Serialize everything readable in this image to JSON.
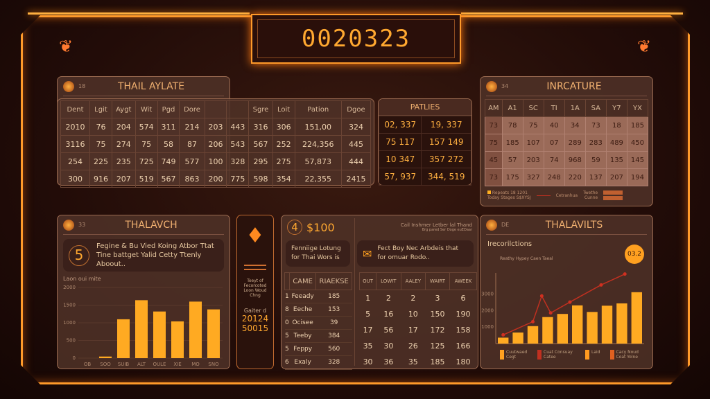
{
  "header": {
    "title": "0020323"
  },
  "colors": {
    "accent": "#ff9a2a",
    "bar": "#ffaa22",
    "line": "#c03020",
    "panel": "#503228"
  },
  "panel_rates": {
    "title": "THAIL AYLATE",
    "badge": "18",
    "columns": [
      "Dent",
      "Lgit",
      "Aygt",
      "Wit",
      "Pgd",
      "Dore",
      "",
      "",
      "Sgre",
      "Loit",
      "Pation",
      "Dgoe"
    ],
    "rows": [
      [
        "2010",
        "76",
        "204",
        "574",
        "311",
        "214",
        "203",
        "443",
        "316",
        "306",
        "151,00",
        "324"
      ],
      [
        "3116",
        "75",
        "274",
        "75",
        "58",
        "87",
        "206",
        "543",
        "567",
        "252",
        "224,356",
        "445"
      ],
      [
        "254",
        "225",
        "235",
        "725",
        "749",
        "577",
        "100",
        "328",
        "295",
        "275",
        "57,873",
        "444"
      ],
      [
        "300",
        "916",
        "207",
        "519",
        "567",
        "863",
        "200",
        "775",
        "598",
        "354",
        "22,355",
        "2415"
      ]
    ]
  },
  "panel_patties": {
    "title": "PATLIES",
    "rows": [
      [
        "02, 337",
        "19, 337"
      ],
      [
        "75  117",
        "157  149"
      ],
      [
        "10  347",
        "357  272"
      ],
      [
        "57, 937",
        "344, 519"
      ]
    ]
  },
  "panel_incature": {
    "title": "INRCATURE",
    "badge": "34",
    "columns": [
      "AM",
      "A1",
      "SC",
      "TI",
      "1A",
      "SA",
      "Y7",
      "YX"
    ],
    "rows": [
      [
        "73",
        "78",
        "75",
        "40",
        "34",
        "73",
        "18",
        "185"
      ],
      [
        "75",
        "185",
        "107",
        "07",
        "289",
        "283",
        "489",
        "450"
      ],
      [
        "45",
        "57",
        "203",
        "74",
        "968",
        "59",
        "135",
        "145"
      ],
      [
        "73",
        "175",
        "327",
        "248",
        "220",
        "137",
        "207",
        "194"
      ]
    ],
    "legend": [
      "Repeats 18 1201",
      "Today Stages S$XYSJ",
      "Cetranhua",
      "Twethe",
      "Cunne"
    ]
  },
  "panel_thalavch": {
    "title": "THALAVCH",
    "badge": "33",
    "step": "5",
    "message": "Fegine & Bu Vied Koing Atbor Ttat Tine battget Yalid Cetty Ttenly Aboout..",
    "chart_title": "Laon oui mite"
  },
  "side": {
    "caption": "Toeyt of Fecorcoted Loon Woud Chng",
    "label": "Gaiter d",
    "v1": "20124",
    "v2": "50015"
  },
  "panel_mid": {
    "step": "4",
    "amount": "$100",
    "note1": "Cail Inshmer Letber lal Thand",
    "note2": "Brg pared Ser Doge euEDaar",
    "msg_left": "Fenniige Lotung for Thai Wors is",
    "msg_right": "Fect Boy Nec Arbdeis that for omuar Rodo..",
    "left_cols": [
      "CAME",
      "RIAEKSE"
    ],
    "left_rows": [
      [
        "1",
        "Feeady",
        "185"
      ],
      [
        "8",
        "Eeche",
        "153"
      ],
      [
        "0",
        "Ocisee",
        "39"
      ],
      [
        "5",
        "Teeby",
        "384"
      ],
      [
        "5",
        "Feppy",
        "560"
      ],
      [
        "6",
        "Exaly",
        "328"
      ]
    ],
    "right_cols": [
      "OUT",
      "LOWIT",
      "AALEY",
      "WAIRT",
      "AWEEK"
    ],
    "right_rows": [
      [
        "1",
        "2",
        "2",
        "3",
        "6"
      ],
      [
        "5",
        "16",
        "10",
        "150",
        "190"
      ],
      [
        "17",
        "56",
        "17",
        "172",
        "158"
      ],
      [
        "35",
        "30",
        "26",
        "125",
        "166"
      ],
      [
        "30",
        "36",
        "35",
        "185",
        "180"
      ]
    ]
  },
  "panel_thalavilts": {
    "title": "THALAVILTS",
    "badge": "DE",
    "subtitle": "Irecorilctions",
    "chart_title": "Reathy Hypey Caen Taeal",
    "badge_value": "03.2",
    "legend": [
      "Cuutwaed Cegt",
      "Cuat Consuay Catee",
      "Laid",
      "Cacy Noud Coat Yolne"
    ]
  },
  "chart_data": [
    {
      "type": "bar",
      "title": "Laon oui mite",
      "categories": [
        "OB",
        "SOO",
        "SUIB",
        "ALT",
        "OULE",
        "XIE",
        "MO",
        "SNO"
      ],
      "values": [
        0,
        45,
        1100,
        1640,
        1320,
        1040,
        1600,
        1380
      ],
      "yticks": [
        "0",
        "500",
        "1000",
        "1500",
        "2000"
      ],
      "ylim": [
        0,
        2000
      ],
      "grid": true
    },
    {
      "type": "bar+line",
      "title": "Reathy Hypey Caen Taeal",
      "categories": [
        "1",
        "2",
        "3",
        "4",
        "5",
        "6",
        "7",
        "8",
        "9",
        "10"
      ],
      "values": [
        360,
        670,
        1060,
        1610,
        1800,
        2320,
        1920,
        2300,
        2440,
        3120
      ],
      "line": [
        [
          1,
          530
        ],
        [
          3,
          1330
        ],
        [
          3.6,
          2890
        ],
        [
          4.2,
          1860
        ],
        [
          5.5,
          2520
        ],
        [
          7.6,
          3560
        ],
        [
          9.2,
          4220
        ]
      ],
      "yticks": [
        "1000",
        "2000",
        "3000"
      ],
      "ylim": [
        0,
        4500
      ]
    }
  ]
}
